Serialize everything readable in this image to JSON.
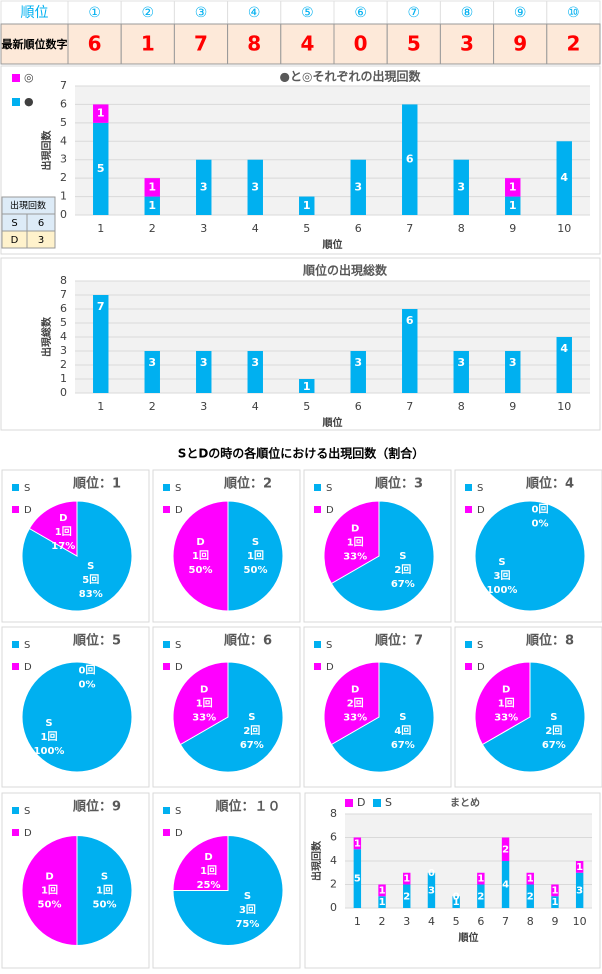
{
  "table": {
    "header": [
      "順位",
      "①",
      "②",
      "③",
      "④",
      "⑤",
      "⑥",
      "⑦",
      "⑧",
      "⑨",
      "⑩"
    ],
    "rows": [
      [
        "最新順位数字",
        6,
        1,
        7,
        8,
        4,
        0,
        5,
        3,
        9,
        2
      ]
    ]
  },
  "side_table": {
    "header": "出現回数",
    "rows": [
      [
        "S",
        6
      ],
      [
        "D",
        3
      ]
    ]
  },
  "section_title": "SとDの時の各順位における出現回数（割合）",
  "chart_data": [
    {
      "type": "bar",
      "stacked": true,
      "title": "●と◎それぞれの出現回数",
      "y_label": "出現回数",
      "x_label": "順位",
      "categories": [
        "1",
        "2",
        "3",
        "4",
        "5",
        "6",
        "7",
        "8",
        "9",
        "10"
      ],
      "series": [
        {
          "name": "●",
          "color": "#00b0f0",
          "values": [
            5,
            1,
            3,
            3,
            1,
            3,
            6,
            3,
            1,
            4
          ]
        },
        {
          "name": "◎",
          "color": "#ff00ff",
          "values": [
            1,
            1,
            0,
            0,
            0,
            0,
            0,
            0,
            1,
            0
          ]
        }
      ],
      "ylim": [
        0,
        7
      ],
      "yticks": [
        0,
        1,
        2,
        3,
        4,
        5,
        6,
        7
      ],
      "grid": true,
      "legend": "left",
      "show_zero_labels": false
    },
    {
      "type": "bar",
      "title": "順位の出現総数",
      "y_label": "出現総数",
      "x_label": "順位",
      "categories": [
        "1",
        "2",
        "3",
        "4",
        "5",
        "6",
        "7",
        "8",
        "9",
        "10"
      ],
      "values": [
        7,
        3,
        3,
        3,
        1,
        3,
        6,
        3,
        3,
        4
      ],
      "color": "#00b0f0",
      "ylim": [
        0,
        8
      ],
      "yticks": [
        0,
        1,
        2,
        3,
        4,
        5,
        6,
        7,
        8
      ],
      "grid": true
    },
    {
      "type": "pie",
      "title": "順位：1",
      "categories": [
        "S",
        "D"
      ],
      "values": [
        5,
        1
      ],
      "value_labels": [
        "5回",
        "1回"
      ],
      "percent_labels": [
        "83%",
        "17%"
      ],
      "colors": [
        "#00b0f0",
        "#ff00ff"
      ]
    },
    {
      "type": "pie",
      "title": "順位：2",
      "categories": [
        "S",
        "D"
      ],
      "values": [
        1,
        1
      ],
      "value_labels": [
        "1回",
        "1回"
      ],
      "percent_labels": [
        "50%",
        "50%"
      ],
      "colors": [
        "#00b0f0",
        "#ff00ff"
      ]
    },
    {
      "type": "pie",
      "title": "順位：3",
      "categories": [
        "S",
        "D"
      ],
      "values": [
        2,
        1
      ],
      "value_labels": [
        "2回",
        "1回"
      ],
      "percent_labels": [
        "67%",
        "33%"
      ],
      "colors": [
        "#00b0f0",
        "#ff00ff"
      ]
    },
    {
      "type": "pie",
      "title": "順位：4",
      "categories": [
        "S",
        "D"
      ],
      "values": [
        3,
        0
      ],
      "value_labels": [
        "3回",
        "0回"
      ],
      "percent_labels": [
        "100%",
        "0%"
      ],
      "colors": [
        "#00b0f0",
        "#ff00ff"
      ]
    },
    {
      "type": "pie",
      "title": "順位：5",
      "categories": [
        "S",
        "D"
      ],
      "values": [
        1,
        0
      ],
      "value_labels": [
        "1回",
        "0回"
      ],
      "percent_labels": [
        "100%",
        "0%"
      ],
      "colors": [
        "#00b0f0",
        "#ff00ff"
      ]
    },
    {
      "type": "pie",
      "title": "順位：6",
      "categories": [
        "S",
        "D"
      ],
      "values": [
        2,
        1
      ],
      "value_labels": [
        "2回",
        "1回"
      ],
      "percent_labels": [
        "67%",
        "33%"
      ],
      "colors": [
        "#00b0f0",
        "#ff00ff"
      ]
    },
    {
      "type": "pie",
      "title": "順位：7",
      "categories": [
        "S",
        "D"
      ],
      "values": [
        4,
        2
      ],
      "value_labels": [
        "4回",
        "2回"
      ],
      "percent_labels": [
        "67%",
        "33%"
      ],
      "colors": [
        "#00b0f0",
        "#ff00ff"
      ]
    },
    {
      "type": "pie",
      "title": "順位：8",
      "categories": [
        "S",
        "D"
      ],
      "values": [
        2,
        1
      ],
      "value_labels": [
        "2回",
        "1回"
      ],
      "percent_labels": [
        "67%",
        "33%"
      ],
      "colors": [
        "#00b0f0",
        "#ff00ff"
      ]
    },
    {
      "type": "pie",
      "title": "順位：9",
      "categories": [
        "S",
        "D"
      ],
      "values": [
        1,
        1
      ],
      "value_labels": [
        "1回",
        "1回"
      ],
      "percent_labels": [
        "50%",
        "50%"
      ],
      "colors": [
        "#00b0f0",
        "#ff00ff"
      ]
    },
    {
      "type": "pie",
      "title": "順位：１０",
      "categories": [
        "S",
        "D"
      ],
      "values": [
        3,
        1
      ],
      "value_labels": [
        "3回",
        "1回"
      ],
      "percent_labels": [
        "75%",
        "25%"
      ],
      "colors": [
        "#00b0f0",
        "#ff00ff"
      ]
    },
    {
      "type": "bar",
      "stacked": true,
      "title": "まとめ",
      "y_label": "出現回数",
      "x_label": "順位",
      "categories": [
        "1",
        "2",
        "3",
        "4",
        "5",
        "6",
        "7",
        "8",
        "9",
        "10"
      ],
      "series": [
        {
          "name": "S",
          "color": "#00b0f0",
          "values": [
            5,
            1,
            2,
            3,
            1,
            2,
            4,
            2,
            1,
            3
          ]
        },
        {
          "name": "D",
          "color": "#ff00ff",
          "values": [
            1,
            1,
            1,
            0,
            0,
            1,
            2,
            1,
            1,
            1
          ]
        }
      ],
      "ylim": [
        0,
        8
      ],
      "yticks": [
        0,
        2,
        4,
        6,
        8
      ],
      "grid": true,
      "legend": "top",
      "show_zero_labels": true
    }
  ]
}
